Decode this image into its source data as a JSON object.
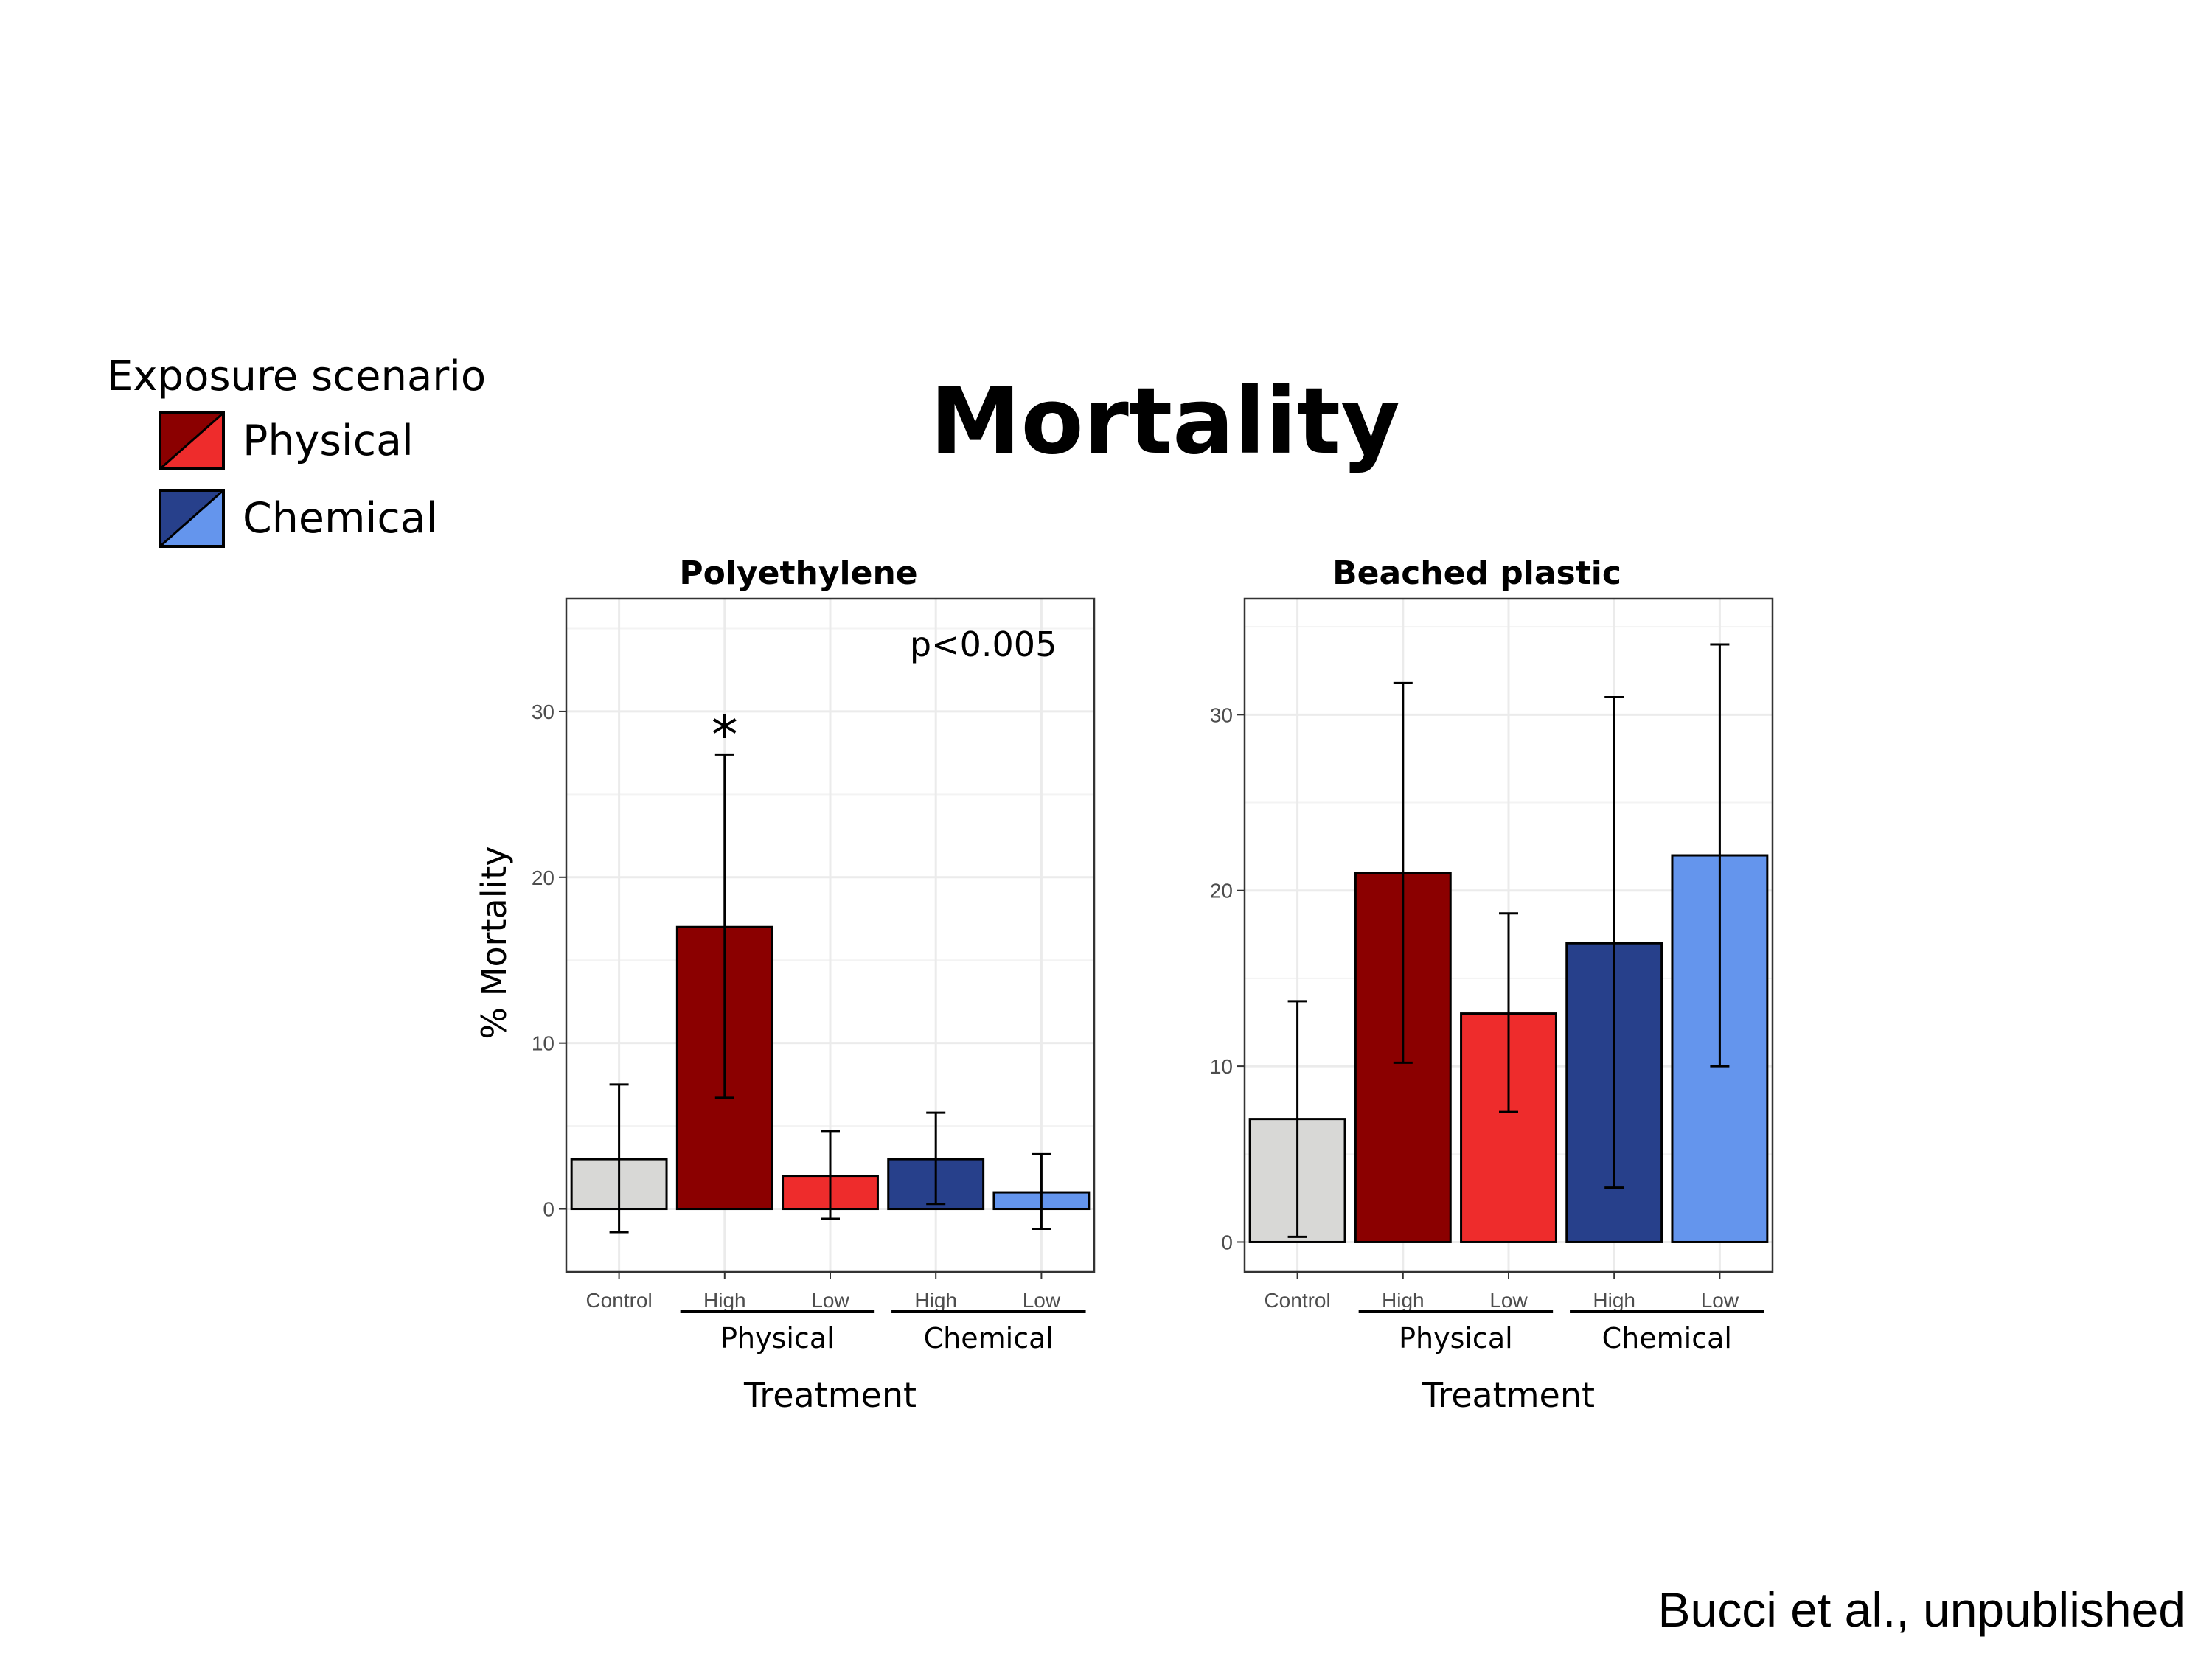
{
  "title": "Mortality",
  "legend": {
    "title": "Exposure scenario",
    "items": [
      {
        "label": "Physical",
        "color_dark": "#8b0000",
        "color_light": "#ee2c2c"
      },
      {
        "label": "Chemical",
        "color_dark": "#27408b",
        "color_light": "#6495ed"
      }
    ]
  },
  "credit": "Bucci et al., unpublished",
  "colors": {
    "control": "#d8d8d6",
    "phys_high": "#8b0000",
    "phys_low": "#ee2c2c",
    "chem_high": "#27408b",
    "chem_low": "#6495ed"
  },
  "chart_data": [
    {
      "type": "bar",
      "title": "Polyethylene",
      "xlabel": "Treatment",
      "ylabel": "% Mortality",
      "categories": [
        "Control",
        "High",
        "Low",
        "High",
        "Low"
      ],
      "groups": [
        {
          "label": "Physical",
          "members": [
            1,
            2
          ]
        },
        {
          "label": "Chemical",
          "members": [
            3,
            4
          ]
        }
      ],
      "values": [
        3,
        17,
        2,
        3,
        1
      ],
      "error_low": [
        -1.4,
        6.7,
        -0.6,
        0.3,
        -1.2
      ],
      "error_high": [
        7.5,
        27.4,
        4.7,
        5.8,
        3.3
      ],
      "ylim": [
        -3.8,
        36.8
      ],
      "yticks": [
        0,
        10,
        20,
        30
      ],
      "annotation": "p<0.005",
      "significance": {
        "index": 1,
        "mark": "*"
      },
      "grid": true
    },
    {
      "type": "bar",
      "title": "Beached plastic",
      "xlabel": "Treatment",
      "ylabel": "",
      "categories": [
        "Control",
        "High",
        "Low",
        "High",
        "Low"
      ],
      "groups": [
        {
          "label": "Physical",
          "members": [
            1,
            2
          ]
        },
        {
          "label": "Chemical",
          "members": [
            3,
            4
          ]
        }
      ],
      "values": [
        7,
        21,
        13,
        17,
        22
      ],
      "error_low": [
        0.3,
        10.2,
        7.4,
        3.1,
        10
      ],
      "error_high": [
        13.7,
        31.8,
        18.7,
        31,
        34
      ],
      "ylim": [
        -1.7,
        36.6
      ],
      "yticks": [
        0,
        10,
        20,
        30
      ],
      "grid": true
    }
  ]
}
